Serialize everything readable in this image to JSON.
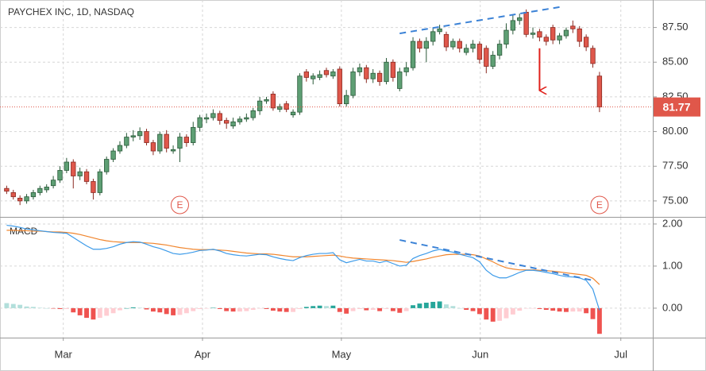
{
  "chart_data": [
    {
      "type": "candlestick",
      "title": "PAYCHEX INC, 1D, NASDAQ",
      "x": [
        0,
        1,
        2,
        3,
        4,
        5,
        6,
        7,
        8,
        9,
        10,
        11,
        12,
        13,
        14,
        15,
        16,
        17,
        18,
        19,
        20,
        21,
        22,
        23,
        24,
        25,
        26,
        27,
        28,
        29,
        30,
        31,
        32,
        33,
        34,
        35,
        36,
        37,
        38,
        39,
        40,
        41,
        42,
        43,
        44,
        45,
        46,
        47,
        48,
        49,
        50,
        51,
        52,
        53,
        54,
        55,
        56,
        57,
        58,
        59,
        60,
        61,
        62,
        63,
        64,
        65,
        66,
        67,
        68,
        69,
        70,
        71,
        72,
        73,
        74,
        75,
        76,
        77,
        78,
        79,
        80,
        81,
        82,
        83,
        84,
        85,
        86,
        87,
        88,
        89
      ],
      "open": [
        75.9,
        75.6,
        75.2,
        75.0,
        75.3,
        75.6,
        75.8,
        76.1,
        76.5,
        77.2,
        77.8,
        76.8,
        77.1,
        76.4,
        75.6,
        77.1,
        78.0,
        78.6,
        79.0,
        79.6,
        79.7,
        80.0,
        79.2,
        78.6,
        79.8,
        78.6,
        78.8,
        79.6,
        79.2,
        80.3,
        80.9,
        81.0,
        81.3,
        80.8,
        80.4,
        80.7,
        80.9,
        81.0,
        81.5,
        82.2,
        82.7,
        81.6,
        82.0,
        81.2,
        81.4,
        84.3,
        83.8,
        83.9,
        84.4,
        84.0,
        84.5,
        82.0,
        82.6,
        84.3,
        84.6,
        83.8,
        84.2,
        83.6,
        85.0,
        83.1,
        84.3,
        84.6,
        86.5,
        86.0,
        86.5,
        87.2,
        87.0,
        86.1,
        86.5,
        85.7,
        86.0,
        86.3,
        86.0,
        84.7,
        85.5,
        86.3,
        87.3,
        88.0,
        88.6,
        87.0,
        87.2,
        86.8,
        87.5,
        86.6,
        86.9,
        87.6,
        87.4,
        86.8,
        86.0,
        84.0
      ],
      "high": [
        76.1,
        75.8,
        75.4,
        75.5,
        75.8,
        76.1,
        76.2,
        76.8,
        77.5,
        78.1,
        78.0,
        77.4,
        77.3,
        76.6,
        77.3,
        78.2,
        78.8,
        79.3,
        79.9,
        80.1,
        80.3,
        80.2,
        79.4,
        80.0,
        80.1,
        79.0,
        79.9,
        79.8,
        80.7,
        81.2,
        81.3,
        81.6,
        81.5,
        81.0,
        81.0,
        81.1,
        81.3,
        81.7,
        82.5,
        82.5,
        82.9,
        82.0,
        82.2,
        81.6,
        84.2,
        84.5,
        84.2,
        84.4,
        84.6,
        84.5,
        84.7,
        83.0,
        84.6,
        84.9,
        84.8,
        84.5,
        84.4,
        85.3,
        85.2,
        84.6,
        85.0,
        86.8,
        86.7,
        86.8,
        87.5,
        87.7,
        87.2,
        86.7,
        86.7,
        86.3,
        86.6,
        86.5,
        86.2,
        85.8,
        86.6,
        87.8,
        88.4,
        88.5,
        88.8,
        87.5,
        87.4,
        87.0,
        87.7,
        87.1,
        87.5,
        88.0,
        87.6,
        87.0,
        86.2,
        84.3
      ],
      "low": [
        75.5,
        75.1,
        74.7,
        74.8,
        75.1,
        75.4,
        75.6,
        75.9,
        76.3,
        77.0,
        75.9,
        76.5,
        76.2,
        75.1,
        75.4,
        76.9,
        77.8,
        78.4,
        78.8,
        79.3,
        79.4,
        79.0,
        78.3,
        78.4,
        78.5,
        78.4,
        77.8,
        78.9,
        79.0,
        80.0,
        80.6,
        80.8,
        80.5,
        80.2,
        80.2,
        80.5,
        80.7,
        80.8,
        81.2,
        82.0,
        81.5,
        81.4,
        81.4,
        81.0,
        81.2,
        83.6,
        83.4,
        83.7,
        83.9,
        83.8,
        81.8,
        81.8,
        82.4,
        84.0,
        83.5,
        83.5,
        83.3,
        83.4,
        83.6,
        82.9,
        84.0,
        84.4,
        85.7,
        85.0,
        86.2,
        87.0,
        85.8,
        85.9,
        85.7,
        85.5,
        85.7,
        84.9,
        84.2,
        84.5,
        85.2,
        86.0,
        87.0,
        87.7,
        86.8,
        86.7,
        86.5,
        86.2,
        86.3,
        86.3,
        86.7,
        87.1,
        86.1,
        85.8,
        84.6,
        81.4
      ],
      "close": [
        75.7,
        75.3,
        75.0,
        75.3,
        75.6,
        75.9,
        76.0,
        76.5,
        77.2,
        77.8,
        76.8,
        77.1,
        76.4,
        75.6,
        77.1,
        78.0,
        78.6,
        79.0,
        79.6,
        79.7,
        80.0,
        79.2,
        78.6,
        79.8,
        78.8,
        78.7,
        79.6,
        79.2,
        80.3,
        81.0,
        81.0,
        81.3,
        80.8,
        80.6,
        80.7,
        80.9,
        81.0,
        81.5,
        82.2,
        82.3,
        81.7,
        81.8,
        81.6,
        81.4,
        84.0,
        83.9,
        84.0,
        84.1,
        84.1,
        84.3,
        82.0,
        82.6,
        84.3,
        84.6,
        83.8,
        84.2,
        83.6,
        85.0,
        83.9,
        84.3,
        84.6,
        86.5,
        86.0,
        86.5,
        87.2,
        87.4,
        86.1,
        86.5,
        86.0,
        86.0,
        86.3,
        85.2,
        84.7,
        85.5,
        86.3,
        87.3,
        88.0,
        88.2,
        87.0,
        87.1,
        86.8,
        86.5,
        86.6,
        86.9,
        87.3,
        87.4,
        86.5,
        86.1,
        84.9,
        81.77
      ],
      "up_color": "#5e9f74",
      "up_edge": "#2b5a3a",
      "down_color": "#df574b",
      "down_edge": "#8a2a22",
      "xlim": [
        -1,
        97
      ],
      "xticks": [
        8.5,
        29.4,
        50.25,
        71.1,
        92.2
      ],
      "ylim": [
        73.85,
        89.48
      ],
      "yticks": [
        {
          "value": 75,
          "label": "75.00"
        },
        {
          "value": 77.5,
          "label": "77.50"
        },
        {
          "value": 80,
          "label": "80.00"
        },
        {
          "value": 82.5,
          "label": "82.50"
        },
        {
          "value": 85,
          "label": "85.00"
        },
        {
          "value": 87.5,
          "label": "87.50"
        }
      ],
      "grid": true,
      "last_price": 81.77,
      "last_price_color": "#e0574a",
      "events": [
        {
          "x": 26,
          "label": "E"
        },
        {
          "x": 89,
          "label": "E"
        }
      ],
      "event_color": "#e0574a",
      "trendlines": [
        {
          "x": [
            59,
            83
          ],
          "y": [
            87.07,
            88.97
          ],
          "color": "#3b82d6"
        }
      ],
      "arrows": [
        {
          "x": 80,
          "y": [
            86.0,
            82.9
          ],
          "color": "#e0211b"
        }
      ]
    },
    {
      "type": "macd",
      "title": "MACD",
      "x": [
        0,
        1,
        2,
        3,
        4,
        5,
        6,
        7,
        8,
        9,
        10,
        11,
        12,
        13,
        14,
        15,
        16,
        17,
        18,
        19,
        20,
        21,
        22,
        23,
        24,
        25,
        26,
        27,
        28,
        29,
        30,
        31,
        32,
        33,
        34,
        35,
        36,
        37,
        38,
        39,
        40,
        41,
        42,
        43,
        44,
        45,
        46,
        47,
        48,
        49,
        50,
        51,
        52,
        53,
        54,
        55,
        56,
        57,
        58,
        59,
        60,
        61,
        62,
        63,
        64,
        65,
        66,
        67,
        68,
        69,
        70,
        71,
        72,
        73,
        74,
        75,
        76,
        77,
        78,
        79,
        80,
        81,
        82,
        83,
        84,
        85,
        86,
        87,
        88,
        89
      ],
      "macd": {
        "color": "#3d9be9",
        "values": [
          1.97,
          1.95,
          1.92,
          1.88,
          1.86,
          1.84,
          1.82,
          1.8,
          1.79,
          1.78,
          1.68,
          1.58,
          1.48,
          1.4,
          1.4,
          1.42,
          1.46,
          1.52,
          1.56,
          1.58,
          1.57,
          1.52,
          1.46,
          1.42,
          1.36,
          1.3,
          1.28,
          1.3,
          1.33,
          1.37,
          1.38,
          1.4,
          1.36,
          1.3,
          1.27,
          1.25,
          1.24,
          1.26,
          1.28,
          1.27,
          1.22,
          1.18,
          1.15,
          1.13,
          1.2,
          1.25,
          1.28,
          1.3,
          1.3,
          1.32,
          1.15,
          1.08,
          1.12,
          1.16,
          1.12,
          1.12,
          1.08,
          1.12,
          1.06,
          1.0,
          1.02,
          1.18,
          1.25,
          1.3,
          1.36,
          1.4,
          1.36,
          1.33,
          1.28,
          1.24,
          1.2,
          1.1,
          0.9,
          0.78,
          0.72,
          0.72,
          0.78,
          0.85,
          0.9,
          0.9,
          0.88,
          0.85,
          0.82,
          0.78,
          0.75,
          0.74,
          0.72,
          0.66,
          0.45,
          -0.05
        ]
      },
      "signal": {
        "color": "#f0852d",
        "values": [
          1.85,
          1.85,
          1.84,
          1.84,
          1.83,
          1.83,
          1.82,
          1.81,
          1.81,
          1.8,
          1.78,
          1.75,
          1.71,
          1.67,
          1.63,
          1.6,
          1.58,
          1.57,
          1.56,
          1.56,
          1.56,
          1.55,
          1.54,
          1.52,
          1.5,
          1.47,
          1.44,
          1.42,
          1.4,
          1.39,
          1.39,
          1.39,
          1.38,
          1.37,
          1.35,
          1.33,
          1.31,
          1.3,
          1.29,
          1.29,
          1.28,
          1.26,
          1.24,
          1.22,
          1.22,
          1.22,
          1.23,
          1.24,
          1.25,
          1.26,
          1.24,
          1.21,
          1.19,
          1.18,
          1.17,
          1.16,
          1.15,
          1.14,
          1.13,
          1.11,
          1.09,
          1.11,
          1.14,
          1.17,
          1.21,
          1.24,
          1.27,
          1.28,
          1.28,
          1.28,
          1.27,
          1.24,
          1.17,
          1.1,
          1.02,
          0.96,
          0.93,
          0.91,
          0.91,
          0.91,
          0.9,
          0.89,
          0.88,
          0.86,
          0.84,
          0.82,
          0.8,
          0.78,
          0.71,
          0.56
        ]
      },
      "histogram": {
        "colors": {
          "pos_rising": "#26a69a",
          "pos_falling": "#b2dfdb",
          "neg_falling": "#ef5350",
          "neg_rising": "#ffcdd2"
        },
        "values": [
          0.12,
          0.1,
          0.08,
          0.04,
          0.03,
          0.01,
          0.0,
          -0.01,
          -0.02,
          -0.02,
          -0.1,
          -0.17,
          -0.23,
          -0.27,
          -0.23,
          -0.18,
          -0.12,
          -0.05,
          0.0,
          0.02,
          0.01,
          -0.03,
          -0.08,
          -0.1,
          -0.14,
          -0.17,
          -0.16,
          -0.12,
          -0.07,
          -0.02,
          -0.01,
          0.01,
          -0.02,
          -0.07,
          -0.08,
          -0.08,
          -0.07,
          -0.04,
          -0.01,
          -0.02,
          -0.06,
          -0.08,
          -0.09,
          -0.09,
          -0.02,
          0.03,
          0.05,
          0.06,
          0.05,
          0.06,
          -0.09,
          -0.13,
          -0.07,
          -0.02,
          -0.05,
          -0.04,
          -0.07,
          -0.02,
          -0.07,
          -0.11,
          -0.07,
          0.07,
          0.11,
          0.13,
          0.15,
          0.16,
          0.09,
          0.05,
          0.0,
          -0.04,
          -0.07,
          -0.14,
          -0.27,
          -0.32,
          -0.3,
          -0.24,
          -0.15,
          -0.06,
          -0.01,
          -0.01,
          -0.02,
          -0.04,
          -0.06,
          -0.08,
          -0.09,
          -0.08,
          -0.08,
          -0.12,
          -0.26,
          -0.61
        ]
      },
      "trendlines": [
        {
          "x": [
            59,
            88.3
          ],
          "y": [
            1.62,
            0.65
          ],
          "color": "#3b82d6"
        }
      ],
      "xlim": [
        -1,
        97
      ],
      "xticks": [
        {
          "value": 8.5,
          "label": "Mar"
        },
        {
          "value": 29.4,
          "label": "Apr"
        },
        {
          "value": 50.25,
          "label": "May"
        },
        {
          "value": 71.1,
          "label": "Jun"
        },
        {
          "value": 92.2,
          "label": "Jul"
        }
      ],
      "ylim": [
        -0.7,
        2.15
      ],
      "yticks": [
        {
          "value": 0,
          "label": "0.00"
        },
        {
          "value": 1,
          "label": "1.00"
        },
        {
          "value": 2,
          "label": "2.00"
        }
      ],
      "grid": true
    }
  ]
}
